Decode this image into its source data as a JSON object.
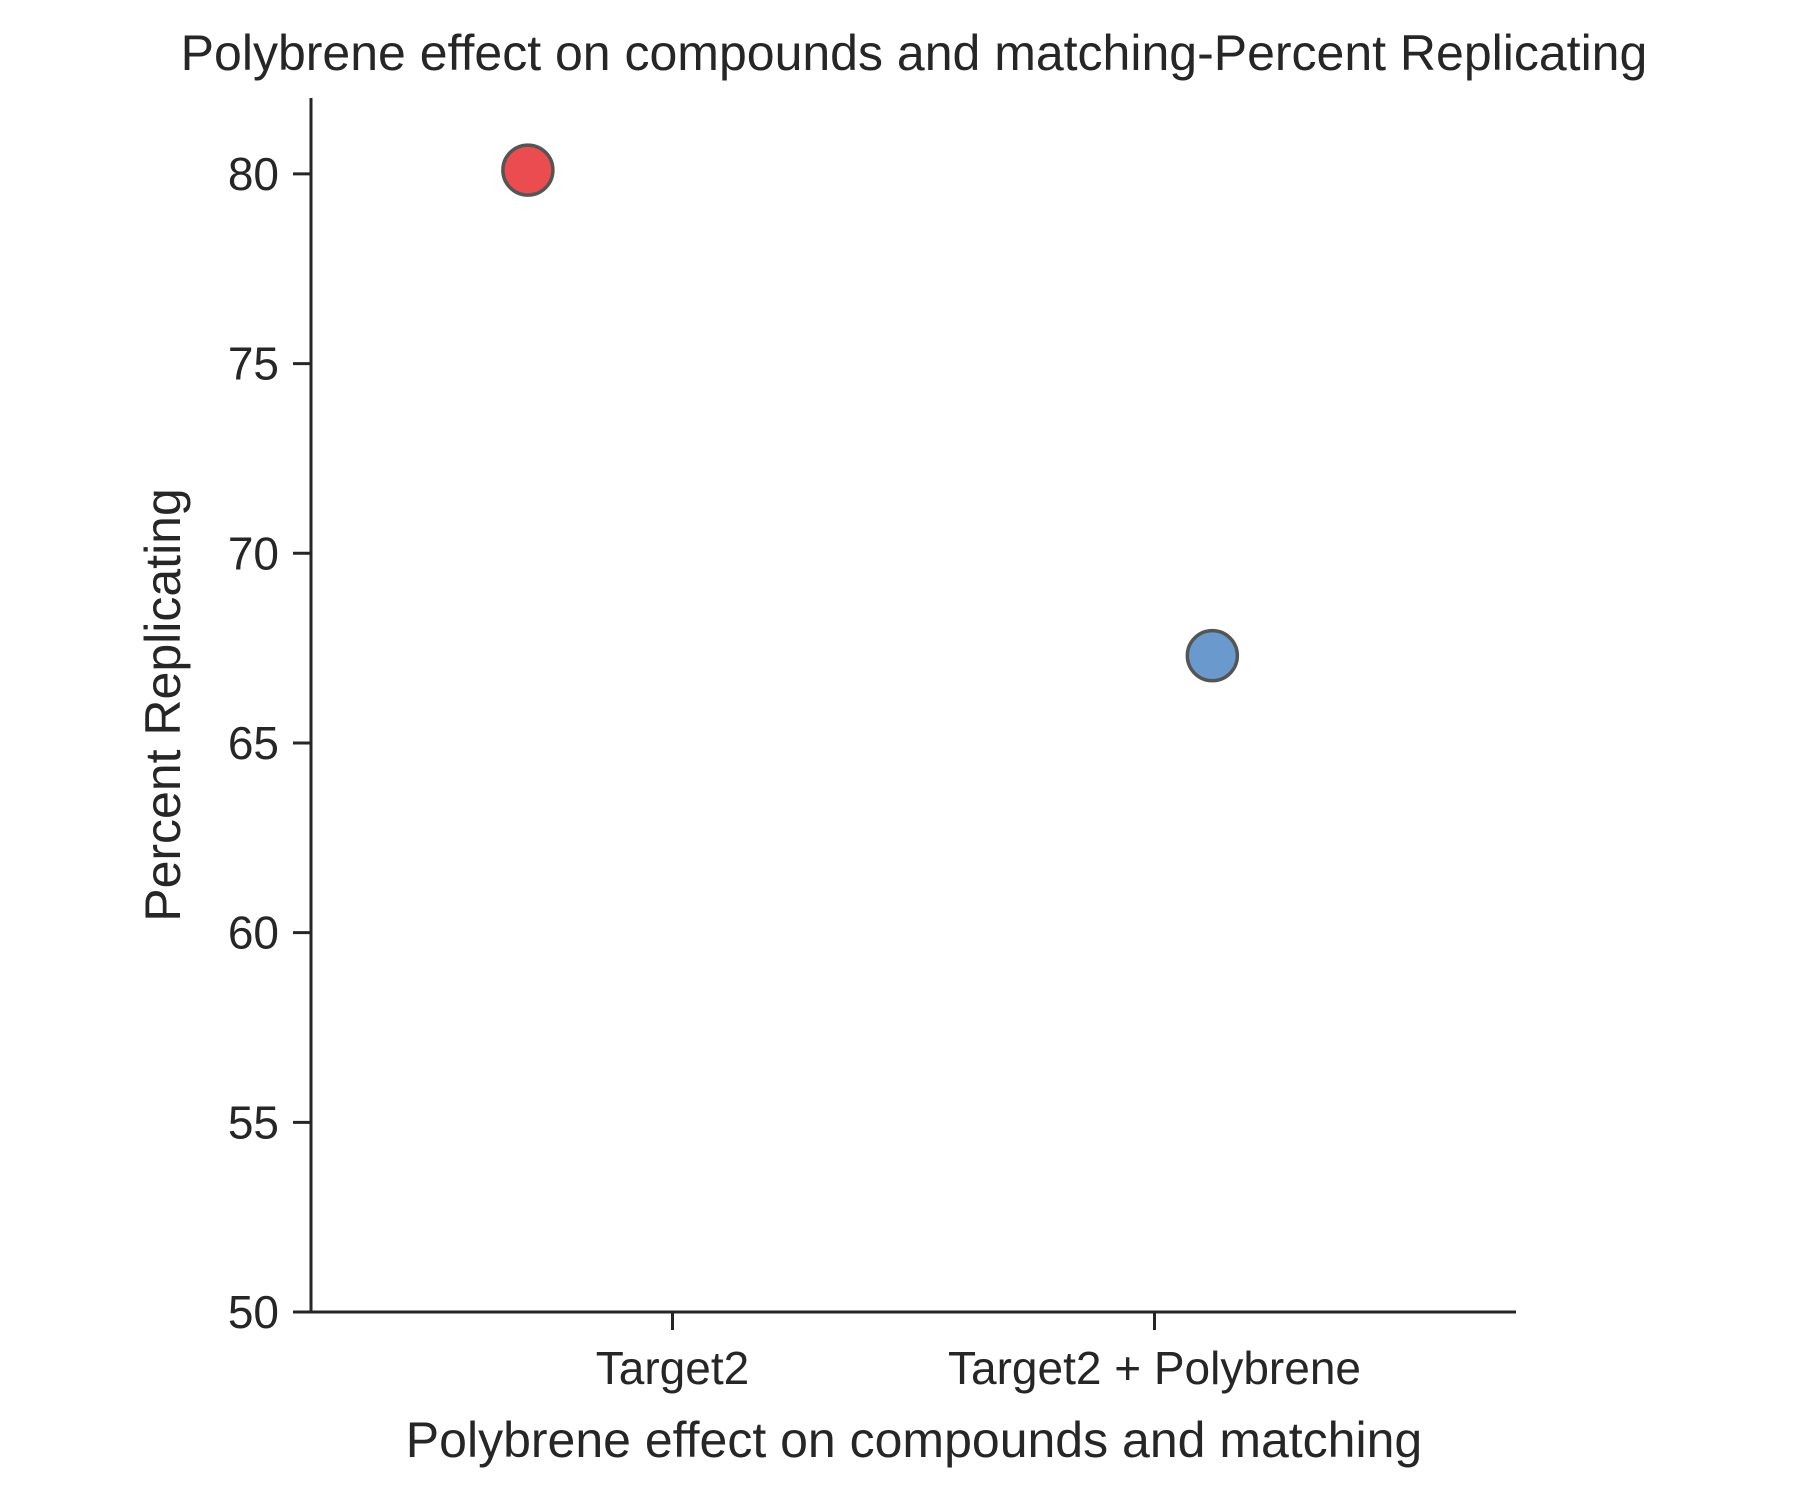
{
  "chart_data": {
    "type": "scatter",
    "title": "Polybrene effect on compounds and matching-Percent Replicating",
    "xlabel": "Polybrene effect on compounds and matching",
    "ylabel": "Percent Replicating",
    "categories": [
      "Target2",
      "Target2 + Polybrene"
    ],
    "ylim": [
      50,
      82
    ],
    "yticks": [
      50,
      55,
      60,
      65,
      70,
      75,
      80
    ],
    "grid": false,
    "points": [
      {
        "category": "Target2",
        "offset": -0.3,
        "y": 80.1,
        "color": "#e8383d"
      },
      {
        "category": "Target2 + Polybrene",
        "offset": 0.12,
        "y": 67.3,
        "color": "#5a8fc8"
      }
    ]
  }
}
